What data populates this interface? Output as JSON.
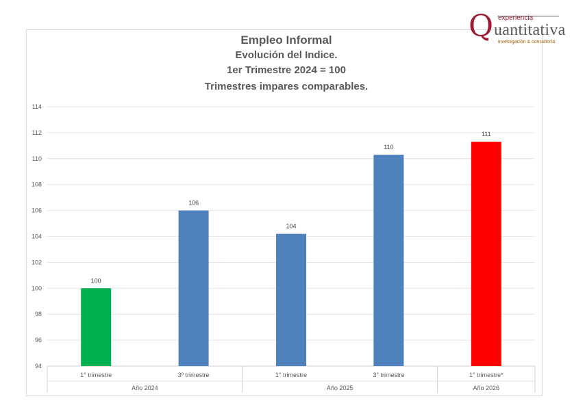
{
  "logo": {
    "top_text": "experiencia",
    "mark": "Q",
    "main_text": "uantitativa",
    "bottom_text": "investigación & consultoría",
    "color": "#9b1c31"
  },
  "chart_data": {
    "type": "bar",
    "title": "Empleo Informal",
    "subtitle_lines": [
      "Evolución del Indice.",
      "1er Trimestre 2024 = 100",
      "Trimestres impares comparables."
    ],
    "categories": [
      "1° trimestre",
      "3º trimestre",
      "1° trimestre",
      "3° trimestre",
      "1° trimestre*"
    ],
    "groups": [
      {
        "label": "Año 2024",
        "span": 2
      },
      {
        "label": "Año 2025",
        "span": 2
      },
      {
        "label": "Año 2026",
        "span": 1
      }
    ],
    "values": [
      100,
      106,
      104.2,
      110.3,
      111.3
    ],
    "data_labels": [
      "100",
      "106",
      "104",
      "110",
      "111"
    ],
    "colors": [
      "#00b050",
      "#4f81bd",
      "#4f81bd",
      "#4f81bd",
      "#ff0000"
    ],
    "ylim": [
      94,
      114
    ],
    "yticks": [
      94,
      96,
      98,
      100,
      102,
      104,
      106,
      108,
      110,
      112,
      114
    ],
    "grid": true,
    "xlabel": "",
    "ylabel": ""
  }
}
